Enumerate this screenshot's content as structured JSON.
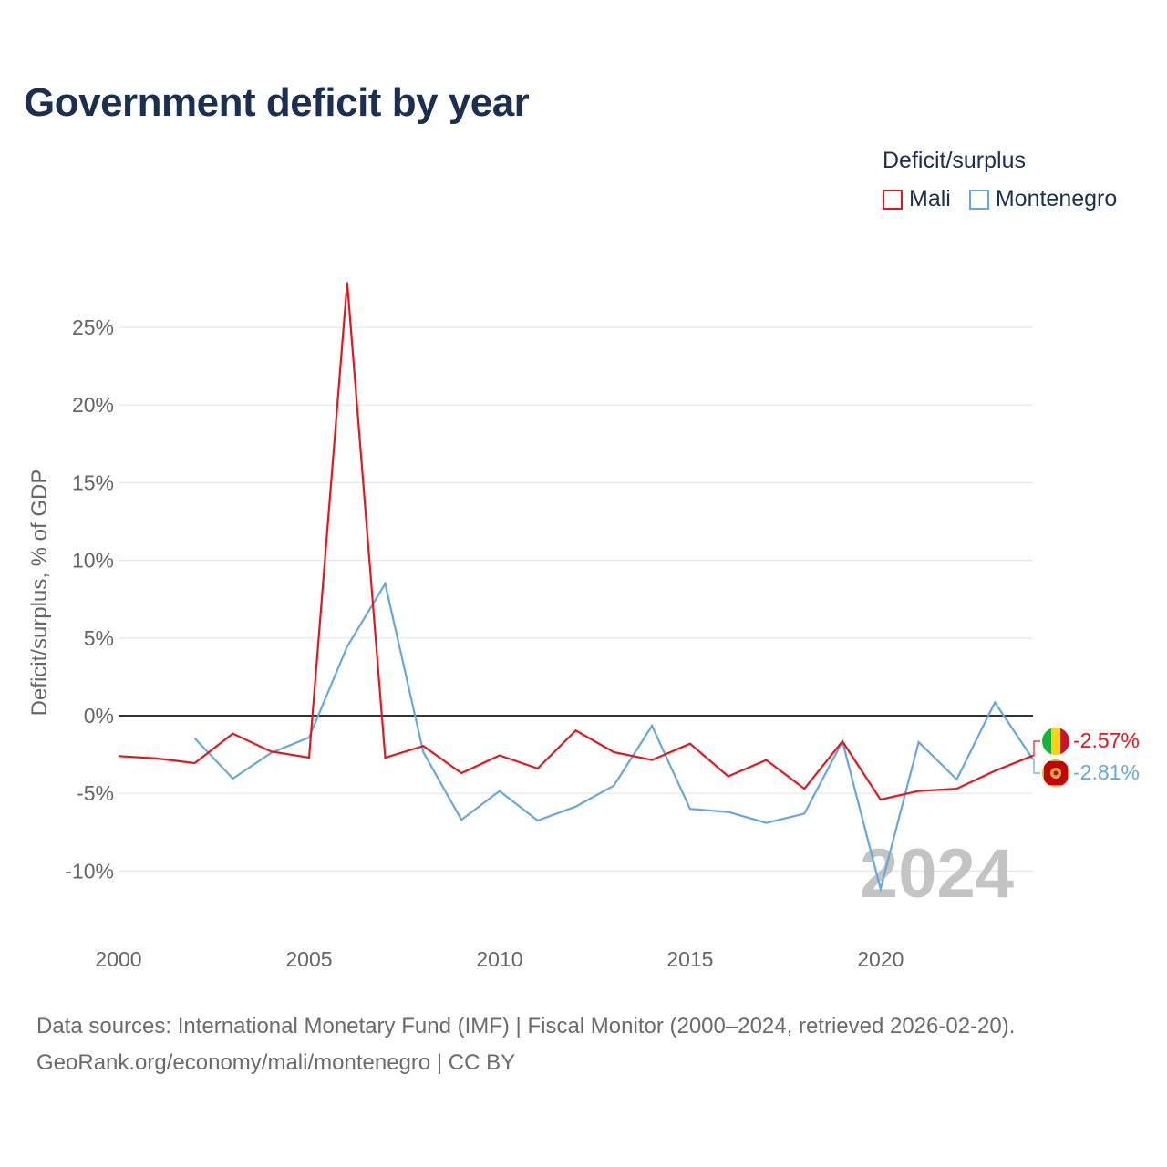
{
  "header": {
    "title": "Government deficit by year"
  },
  "legend": {
    "title": "Deficit/surplus",
    "items": [
      {
        "name": "Mali",
        "color": "#e8141b"
      },
      {
        "name": "Montenegro",
        "color": "#64a8e0"
      }
    ]
  },
  "chart_data": {
    "type": "line",
    "title": "Government deficit by year",
    "xlabel": "",
    "ylabel": "Deficit/surplus, % of GDP",
    "xlim": [
      2000,
      2024
    ],
    "ylim": [
      -12.5,
      28.5
    ],
    "x_ticks": [
      2000,
      2005,
      2010,
      2015,
      2020
    ],
    "y_ticks": [
      -10,
      -5,
      0,
      5,
      10,
      15,
      20,
      25
    ],
    "y_tick_labels": [
      "-10%",
      "-5%",
      "0%",
      "5%",
      "10%",
      "15%",
      "20%",
      "25%"
    ],
    "watermark_year": "2024",
    "series": [
      {
        "name": "Mali",
        "color": "#e8141b",
        "end_label": "-2.57%",
        "x": [
          2000,
          2001,
          2002,
          2003,
          2004,
          2005,
          2006,
          2007,
          2008,
          2009,
          2010,
          2011,
          2012,
          2013,
          2014,
          2015,
          2016,
          2017,
          2018,
          2019,
          2020,
          2021,
          2022,
          2023,
          2024
        ],
        "values": [
          -2.6,
          -2.75,
          -3.05,
          -1.15,
          -2.3,
          -2.7,
          27.9,
          -2.7,
          -1.95,
          -3.7,
          -2.55,
          -3.4,
          -0.95,
          -2.35,
          -2.85,
          -1.8,
          -3.9,
          -2.85,
          -4.7,
          -1.65,
          -5.4,
          -4.85,
          -4.7,
          -3.55,
          -2.57
        ]
      },
      {
        "name": "Montenegro",
        "color": "#64a8e0",
        "end_label": "-2.81%",
        "x": [
          2002,
          2003,
          2004,
          2005,
          2006,
          2007,
          2008,
          2009,
          2010,
          2011,
          2012,
          2013,
          2014,
          2015,
          2016,
          2017,
          2018,
          2019,
          2020,
          2021,
          2022,
          2023,
          2024
        ],
        "values": [
          -1.45,
          -4.05,
          -2.4,
          -1.4,
          4.45,
          8.5,
          -2.35,
          -6.7,
          -4.85,
          -6.75,
          -5.85,
          -4.5,
          -0.65,
          -6.0,
          -6.2,
          -6.9,
          -6.3,
          -1.65,
          -11.15,
          -1.7,
          -4.1,
          0.85,
          -2.81
        ]
      }
    ]
  },
  "footer": {
    "sources": "Data sources: International Monetary Fund (IMF) | Fiscal Monitor (2000–2024, retrieved 2026-02-20).",
    "attribution": "GeoRank.org/economy/mali/montenegro | CC BY"
  }
}
